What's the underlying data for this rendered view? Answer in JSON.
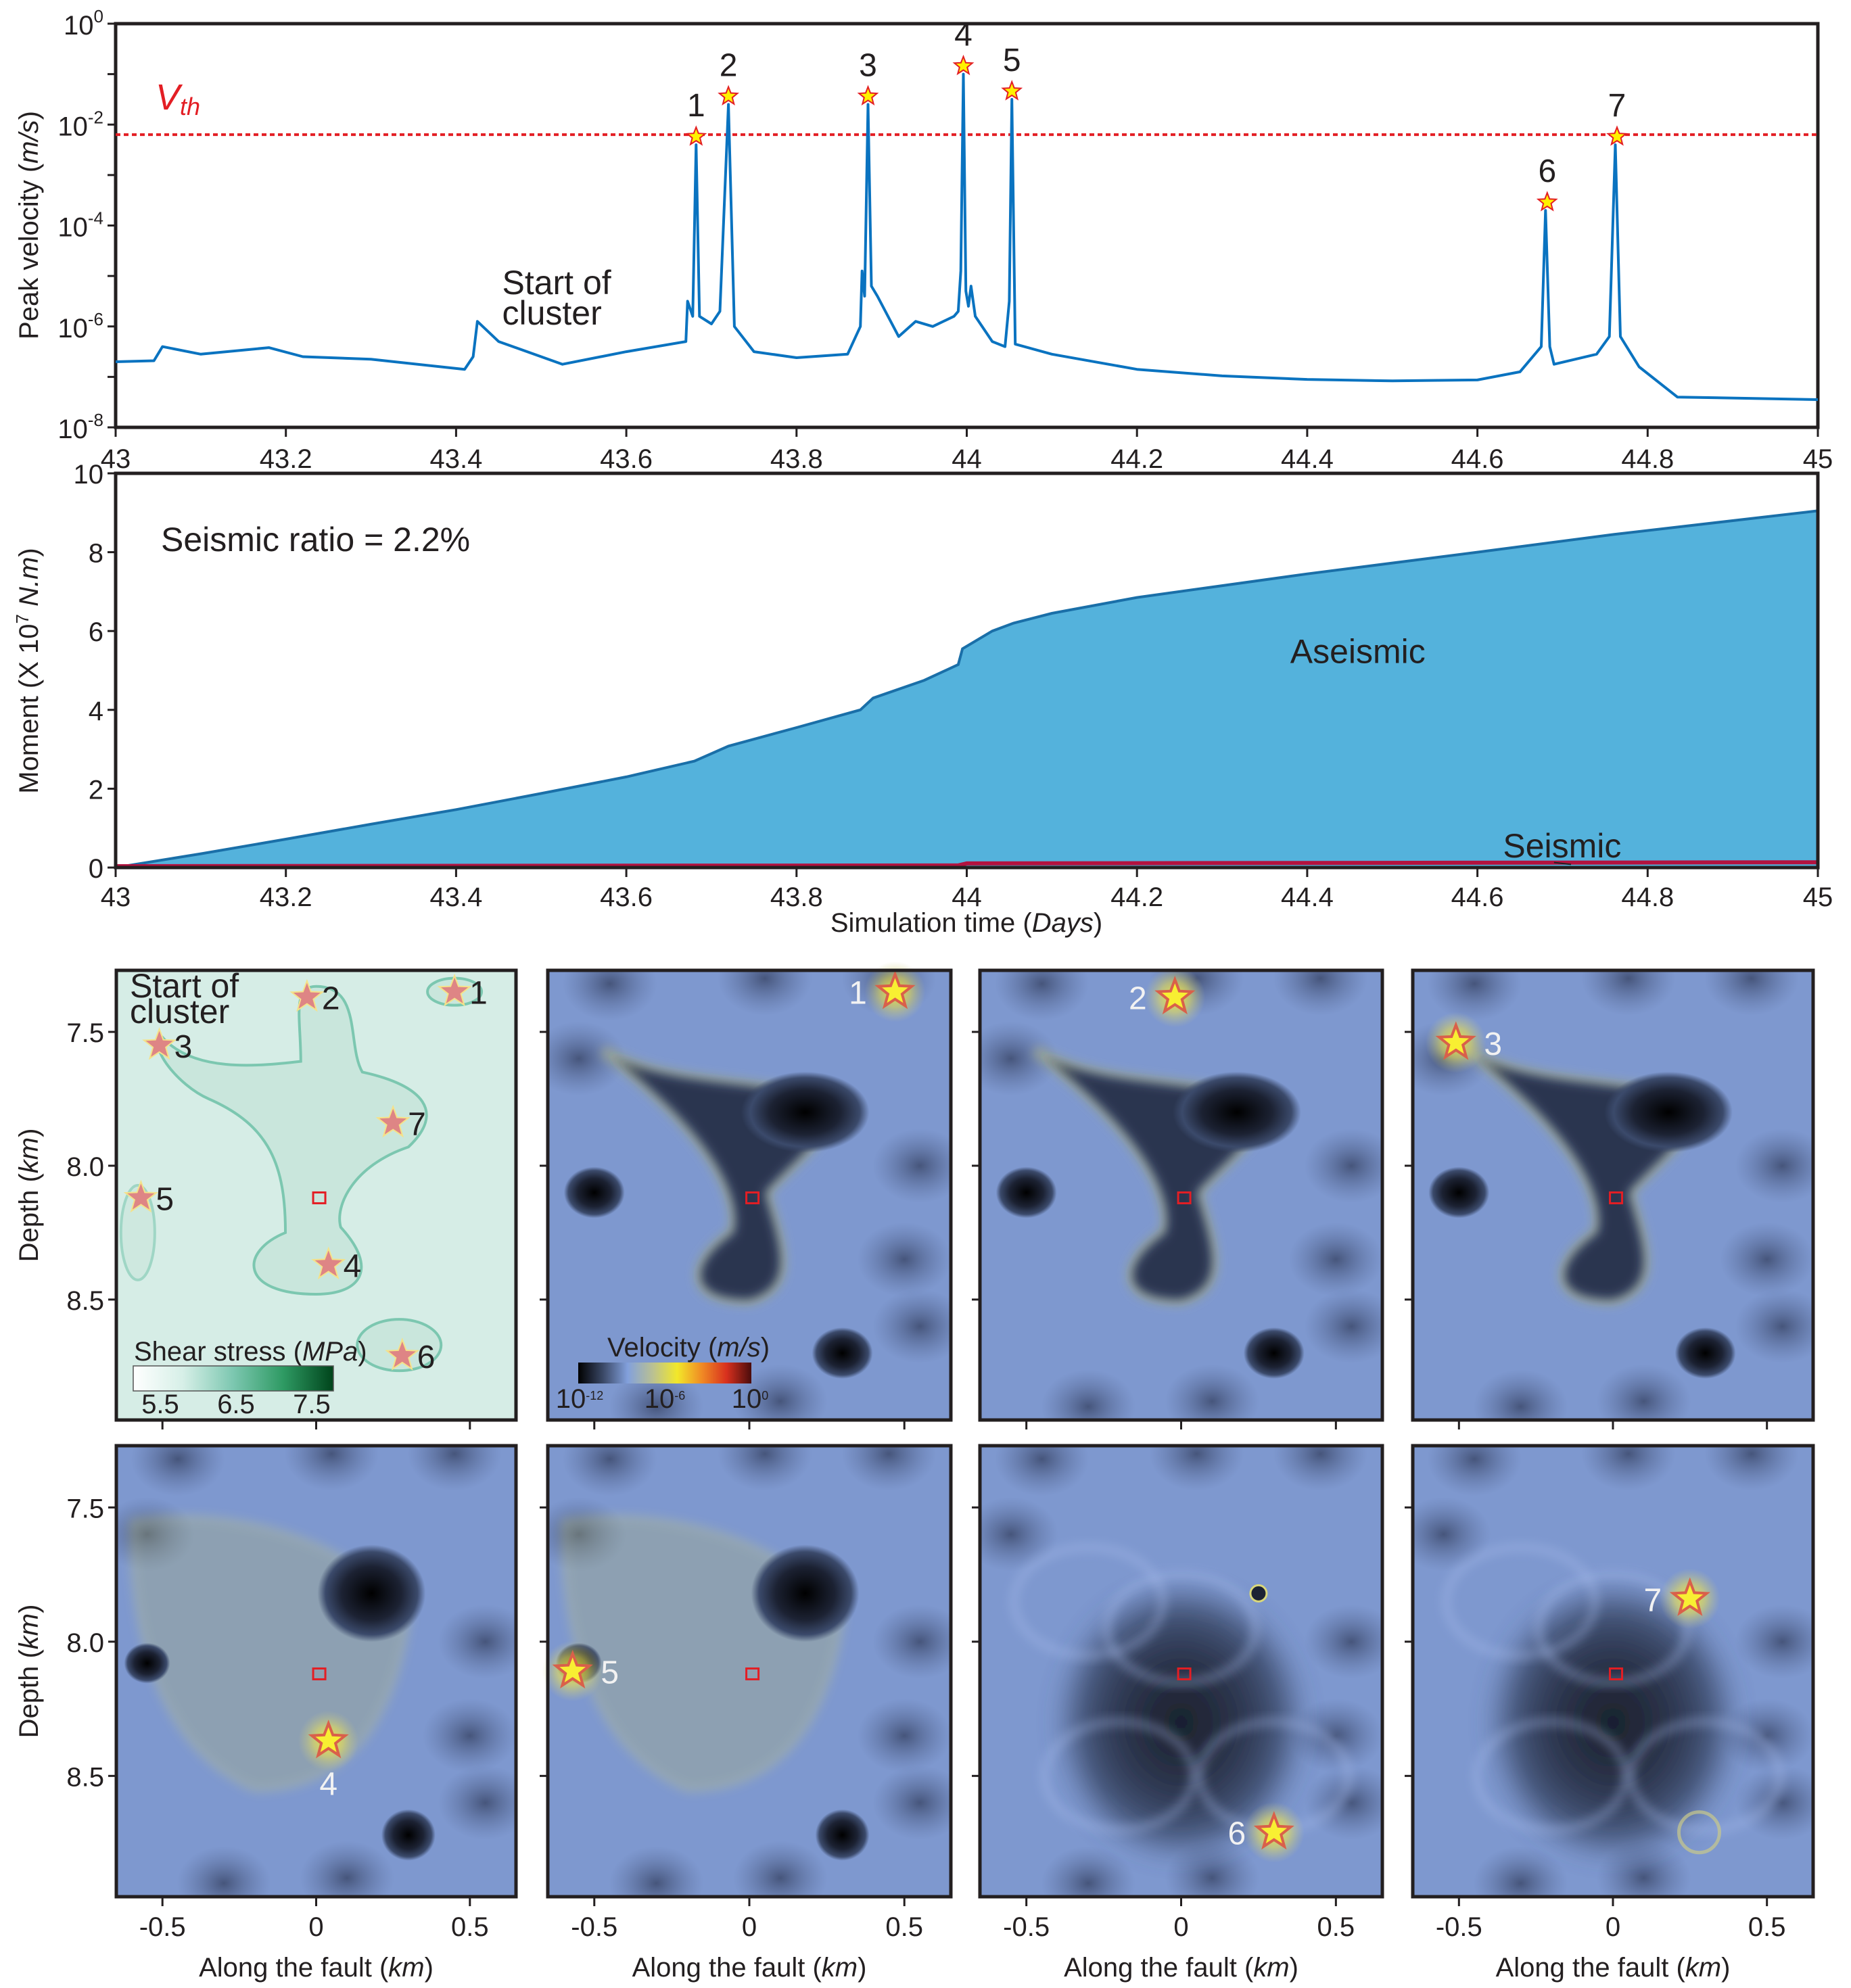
{
  "chart_data": [
    {
      "id": "peak-velocity",
      "type": "line",
      "title": "",
      "xlabel": "",
      "ylabel": "Peak velocity",
      "ylabel_unit": "m/s",
      "yscale": "log",
      "xlim": [
        43,
        45
      ],
      "ylim_exponents": [
        -8,
        0
      ],
      "xticks": [
        "43",
        "43.2",
        "43.4",
        "43.6",
        "43.8",
        "44",
        "44.2",
        "44.4",
        "44.6",
        "44.8",
        "45"
      ],
      "yticks": [
        {
          "base": "10",
          "exp": "0"
        },
        {
          "base": "10",
          "exp": "-2"
        },
        {
          "base": "10",
          "exp": "-4"
        },
        {
          "base": "10",
          "exp": "-6"
        },
        {
          "base": "10",
          "exp": "-8"
        }
      ],
      "threshold": {
        "label_main": "V",
        "label_sub": "th",
        "log10_value": -2.2,
        "color": "#e31e24"
      },
      "line_color": "#0a73c0",
      "series": [
        {
          "name": "Peak velocity",
          "points": [
            [
              43.0,
              -6.7
            ],
            [
              43.045,
              -6.68
            ],
            [
              43.055,
              -6.4
            ],
            [
              43.1,
              -6.55
            ],
            [
              43.18,
              -6.42
            ],
            [
              43.22,
              -6.6
            ],
            [
              43.3,
              -6.65
            ],
            [
              43.41,
              -6.85
            ],
            [
              43.42,
              -6.6
            ],
            [
              43.425,
              -5.9
            ],
            [
              43.45,
              -6.3
            ],
            [
              43.525,
              -6.75
            ],
            [
              43.6,
              -6.5
            ],
            [
              43.67,
              -6.3
            ],
            [
              43.672,
              -5.5
            ],
            [
              43.678,
              -5.8
            ],
            [
              43.682,
              -2.4
            ],
            [
              43.686,
              -5.8
            ],
            [
              43.7,
              -5.95
            ],
            [
              43.71,
              -5.7
            ],
            [
              43.72,
              -1.6
            ],
            [
              43.727,
              -6.0
            ],
            [
              43.75,
              -6.5
            ],
            [
              43.8,
              -6.62
            ],
            [
              43.86,
              -6.55
            ],
            [
              43.875,
              -6.0
            ],
            [
              43.877,
              -4.9
            ],
            [
              43.88,
              -5.4
            ],
            [
              43.884,
              -1.6
            ],
            [
              43.888,
              -5.2
            ],
            [
              43.895,
              -5.4
            ],
            [
              43.92,
              -6.2
            ],
            [
              43.94,
              -5.9
            ],
            [
              43.96,
              -6.0
            ],
            [
              43.985,
              -5.8
            ],
            [
              43.99,
              -5.7
            ],
            [
              43.993,
              -4.9
            ],
            [
              43.996,
              -1.0
            ],
            [
              43.999,
              -5.3
            ],
            [
              44.002,
              -5.6
            ],
            [
              44.005,
              -5.2
            ],
            [
              44.01,
              -5.8
            ],
            [
              44.03,
              -6.3
            ],
            [
              44.045,
              -6.4
            ],
            [
              44.05,
              -5.5
            ],
            [
              44.053,
              -1.5
            ],
            [
              44.057,
              -6.35
            ],
            [
              44.1,
              -6.55
            ],
            [
              44.2,
              -6.85
            ],
            [
              44.3,
              -6.98
            ],
            [
              44.4,
              -7.05
            ],
            [
              44.5,
              -7.08
            ],
            [
              44.6,
              -7.06
            ],
            [
              44.65,
              -6.9
            ],
            [
              44.675,
              -6.4
            ],
            [
              44.68,
              -3.7
            ],
            [
              44.685,
              -6.4
            ],
            [
              44.69,
              -6.75
            ],
            [
              44.74,
              -6.55
            ],
            [
              44.755,
              -6.2
            ],
            [
              44.762,
              -2.4
            ],
            [
              44.768,
              -6.2
            ],
            [
              44.79,
              -6.8
            ],
            [
              44.835,
              -7.4
            ],
            [
              45.0,
              -7.45
            ]
          ]
        }
      ],
      "events": [
        {
          "label": "1",
          "t": 43.682,
          "log10_v": -2.4
        },
        {
          "label": "2",
          "t": 43.72,
          "log10_v": -1.6
        },
        {
          "label": "3",
          "t": 43.884,
          "log10_v": -1.6
        },
        {
          "label": "4",
          "t": 43.996,
          "log10_v": -1.0
        },
        {
          "label": "5",
          "t": 44.053,
          "log10_v": -1.5
        },
        {
          "label": "6",
          "t": 44.682,
          "log10_v": -3.7
        },
        {
          "label": "7",
          "t": 44.764,
          "log10_v": -2.4
        }
      ],
      "annotations": [
        {
          "text_line1": "Start of",
          "text_line2": "cluster",
          "t": 43.47,
          "log10_v": -5.4
        }
      ]
    },
    {
      "id": "moment",
      "type": "area",
      "xlabel": "Simulation time",
      "xlabel_unit": "Days",
      "ylabel_prefix": "Moment (X 10",
      "ylabel_exp": "7",
      "ylabel_unit": "N.m",
      "xlim": [
        43,
        45
      ],
      "ylim": [
        0,
        10
      ],
      "xticks": [
        "43",
        "43.2",
        "43.4",
        "43.6",
        "43.8",
        "44",
        "44.2",
        "44.4",
        "44.6",
        "44.8",
        "45"
      ],
      "yticks": [
        "0",
        "2",
        "4",
        "6",
        "8",
        "10"
      ],
      "annotation": "Seismic ratio = 2.2%",
      "series": [
        {
          "name": "Aseismic",
          "fill": "#54b2dc",
          "stroke": "#1a6fa8",
          "points": [
            [
              43.0,
              0
            ],
            [
              43.1,
              0.35
            ],
            [
              43.2,
              0.72
            ],
            [
              43.3,
              1.1
            ],
            [
              43.4,
              1.47
            ],
            [
              43.5,
              1.88
            ],
            [
              43.6,
              2.3
            ],
            [
              43.68,
              2.7
            ],
            [
              43.72,
              3.08
            ],
            [
              43.8,
              3.55
            ],
            [
              43.875,
              4.0
            ],
            [
              43.89,
              4.3
            ],
            [
              43.95,
              4.75
            ],
            [
              43.99,
              5.15
            ],
            [
              43.995,
              5.55
            ],
            [
              44.03,
              6.0
            ],
            [
              44.055,
              6.2
            ],
            [
              44.1,
              6.45
            ],
            [
              44.2,
              6.85
            ],
            [
              44.4,
              7.45
            ],
            [
              44.6,
              8.0
            ],
            [
              44.76,
              8.45
            ],
            [
              45.0,
              9.05
            ]
          ]
        },
        {
          "name": "Seismic",
          "stroke": "#b3123f",
          "points": [
            [
              43.0,
              0.0
            ],
            [
              43.99,
              0.02
            ],
            [
              44.0,
              0.07
            ],
            [
              45.0,
              0.1
            ]
          ]
        }
      ],
      "labels": [
        {
          "text": "Aseismic",
          "t": 44.38,
          "m": 5.5
        },
        {
          "text": "Seismic",
          "t": 44.63,
          "m": 0.5
        }
      ]
    }
  ],
  "panels": {
    "x_axis_label": "Along the fault",
    "x_axis_unit": "km",
    "y_axis_label": "Depth",
    "y_axis_unit": "km",
    "xlim": [
      -0.65,
      0.65
    ],
    "ylim": [
      7.27,
      8.95
    ],
    "xticks": [
      "-0.5",
      "0",
      "0.5"
    ],
    "yticks": [
      "7.5",
      "8.0",
      "8.5"
    ],
    "first_panel_title_line1": "Start of",
    "first_panel_title_line2": "cluster",
    "shear_colorbar": {
      "title": "Shear stress",
      "unit": "MPa",
      "ticks": [
        "5.5",
        "6.5",
        "7.5"
      ],
      "colors": [
        "#ffffff",
        "#d6efe7",
        "#7cc7b0",
        "#2e9a63",
        "#00441b"
      ]
    },
    "velocity_colorbar": {
      "title": "Velocity",
      "unit": "m/s",
      "ticks": [
        {
          "base": "10",
          "exp": "-12"
        },
        {
          "base": "10",
          "exp": "-6"
        },
        {
          "base": "10",
          "exp": "0"
        }
      ],
      "colors": [
        "#000000",
        "#3a4866",
        "#82a0dc",
        "#b9c094",
        "#f2e82a",
        "#f08a24",
        "#d8301e",
        "#4a0c0c"
      ]
    },
    "stress_stars": [
      {
        "label": "1",
        "x": 0.45,
        "d": 7.35
      },
      {
        "label": "2",
        "x": -0.03,
        "d": 7.37
      },
      {
        "label": "3",
        "x": -0.51,
        "d": 7.55
      },
      {
        "label": "4",
        "x": 0.04,
        "d": 8.37
      },
      {
        "label": "5",
        "x": -0.57,
        "d": 8.12
      },
      {
        "label": "6",
        "x": 0.28,
        "d": 8.71
      },
      {
        "label": "7",
        "x": 0.25,
        "d": 7.84
      }
    ],
    "hypocenter_marker": {
      "x": 0.01,
      "d": 8.12,
      "color": "#e31e24"
    },
    "velocity_snapshots": [
      {
        "event": "1",
        "x": 0.47,
        "d": 7.35,
        "label_side": "left"
      },
      {
        "event": "2",
        "x": -0.02,
        "d": 7.37,
        "label_side": "left"
      },
      {
        "event": "3",
        "x": -0.51,
        "d": 7.54,
        "label_side": "right"
      },
      {
        "event": "4",
        "x": 0.04,
        "d": 8.37,
        "label_side": "below"
      },
      {
        "event": "5",
        "x": -0.57,
        "d": 8.11,
        "label_side": "right"
      },
      {
        "event": "6",
        "x": 0.3,
        "d": 8.71,
        "label_side": "left"
      },
      {
        "event": "7",
        "x": 0.25,
        "d": 7.84,
        "label_side": "left"
      }
    ]
  }
}
